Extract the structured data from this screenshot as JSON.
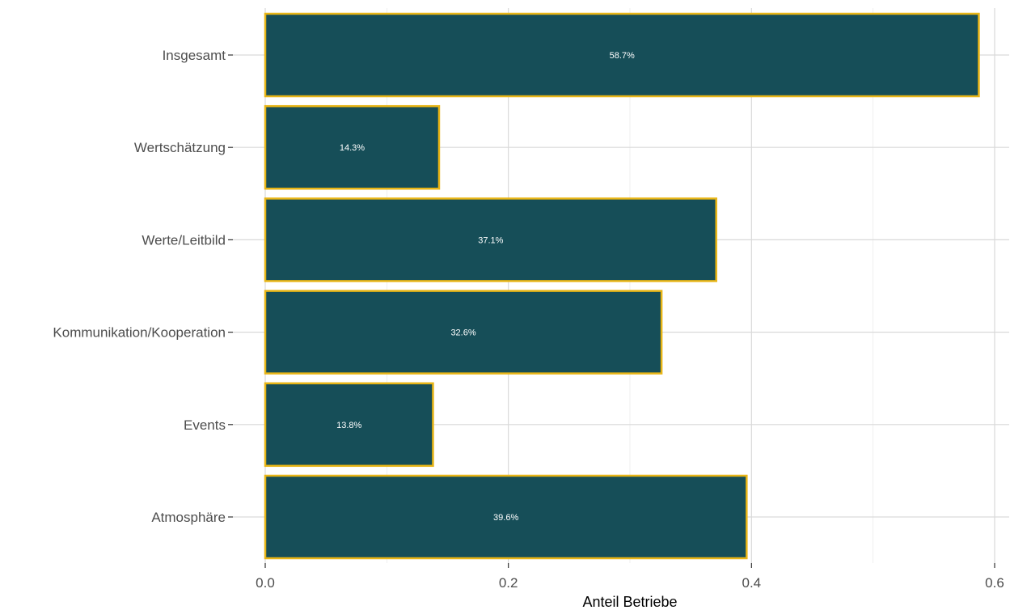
{
  "chart_data": {
    "type": "bar",
    "orientation": "horizontal",
    "categories": [
      "Insgesamt",
      "Wertschätzung",
      "Werte/Leitbild",
      "Kommunikation/Kooperation",
      "Events",
      "Atmosphäre"
    ],
    "values": [
      0.587,
      0.143,
      0.371,
      0.326,
      0.138,
      0.396
    ],
    "data_labels": [
      "58.7%",
      "14.3%",
      "37.1%",
      "32.6%",
      "13.8%",
      "39.6%"
    ],
    "xlabel": "Anteil Betriebe",
    "ylabel": "",
    "title": "",
    "xlim": [
      0.0,
      0.6
    ],
    "x_ticks": [
      0.0,
      0.2,
      0.4,
      0.6
    ],
    "x_tick_labels": [
      "0.0",
      "0.2",
      "0.4",
      "0.6"
    ],
    "grid": true,
    "legend": "none",
    "colors": {
      "bar_fill": "#164e58",
      "bar_outline": "#e8b516",
      "grid": "#d9d9d9",
      "label_text": "#ffffff"
    }
  }
}
